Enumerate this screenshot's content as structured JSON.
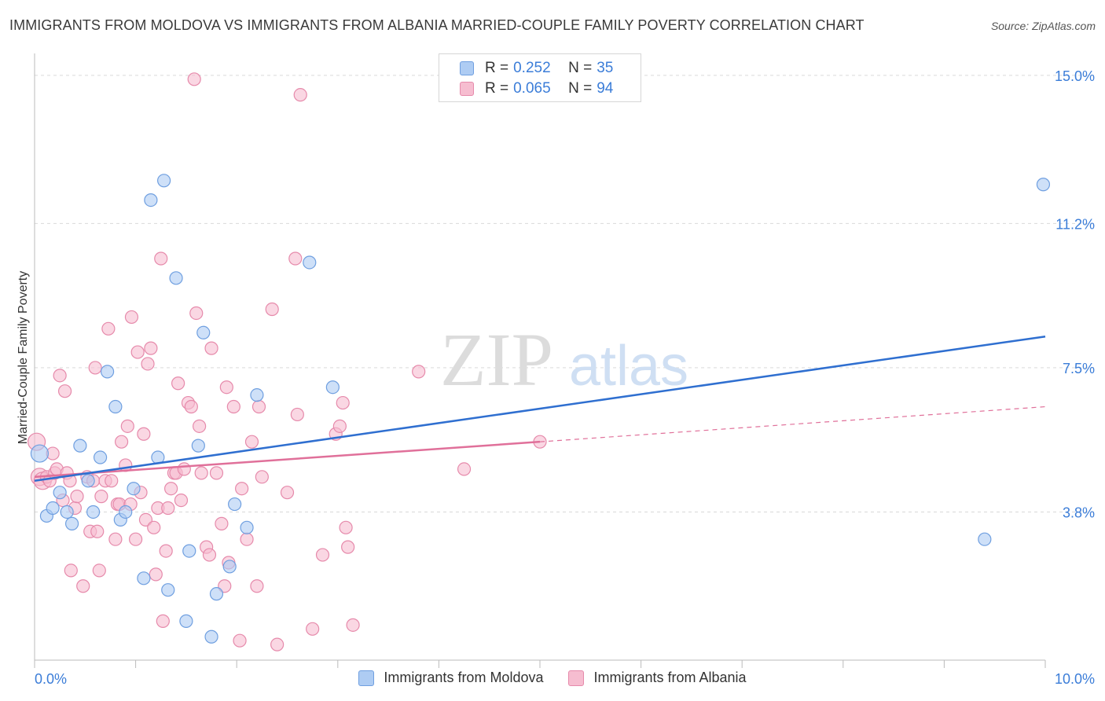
{
  "header": {
    "title": "IMMIGRANTS FROM MOLDOVA VS IMMIGRANTS FROM ALBANIA MARRIED-COUPLE FAMILY POVERTY CORRELATION CHART",
    "source": "Source: ZipAtlas.com"
  },
  "watermark": {
    "zip": "ZIP",
    "atlas": "atlas"
  },
  "legend": {
    "r_label": "R =",
    "n_label": "N =",
    "moldova": {
      "r": "0.252",
      "n": "35"
    },
    "albania": {
      "r": "0.065",
      "n": "94"
    }
  },
  "colors": {
    "moldova_fill": "#aeccf3",
    "moldova_stroke": "#6f9fe0",
    "moldova_line": "#2f6fd0",
    "albania_fill": "#f6bdd0",
    "albania_stroke": "#e68aab",
    "albania_line": "#e0709a",
    "tick_text": "#3b7dd8"
  },
  "chart_data": {
    "type": "scatter",
    "title": "IMMIGRANTS FROM MOLDOVA VS IMMIGRANTS FROM ALBANIA MARRIED-COUPLE FAMILY POVERTY CORRELATION CHART",
    "xlabel": "",
    "ylabel": "Married-Couple Family Poverty",
    "xlim": [
      0,
      10
    ],
    "ylim": [
      0,
      15.4
    ],
    "x_tick_labels": [
      "0.0%",
      "10.0%"
    ],
    "y_ticks": [
      3.8,
      7.5,
      11.2,
      15.0
    ],
    "y_tick_labels": [
      "3.8%",
      "7.5%",
      "11.2%",
      "15.0%"
    ],
    "grid": true,
    "legend_position": "top-center",
    "series": [
      {
        "name": "Immigrants from Moldova",
        "r": 0.252,
        "n": 35,
        "trend": {
          "x": [
            0,
            10
          ],
          "y": [
            4.6,
            8.3
          ]
        },
        "points": [
          [
            0.05,
            5.3
          ],
          [
            0.12,
            3.7
          ],
          [
            0.18,
            3.9
          ],
          [
            0.25,
            4.3
          ],
          [
            0.32,
            3.8
          ],
          [
            0.37,
            3.5
          ],
          [
            0.45,
            5.5
          ],
          [
            0.53,
            4.6
          ],
          [
            0.58,
            3.8
          ],
          [
            0.65,
            5.2
          ],
          [
            0.72,
            7.4
          ],
          [
            0.8,
            6.5
          ],
          [
            0.85,
            3.6
          ],
          [
            0.9,
            3.8
          ],
          [
            0.98,
            4.4
          ],
          [
            1.08,
            2.1
          ],
          [
            1.15,
            11.8
          ],
          [
            1.28,
            12.3
          ],
          [
            1.32,
            1.8
          ],
          [
            1.22,
            5.2
          ],
          [
            1.4,
            9.8
          ],
          [
            1.5,
            1.0
          ],
          [
            1.53,
            2.8
          ],
          [
            1.62,
            5.5
          ],
          [
            1.67,
            8.4
          ],
          [
            1.75,
            0.6
          ],
          [
            1.8,
            1.7
          ],
          [
            1.93,
            2.4
          ],
          [
            1.98,
            4.0
          ],
          [
            2.1,
            3.4
          ],
          [
            2.2,
            6.8
          ],
          [
            2.72,
            10.2
          ],
          [
            2.95,
            7.0
          ],
          [
            9.4,
            3.1
          ],
          [
            9.98,
            12.2
          ]
        ]
      },
      {
        "name": "Immigrants from Albania",
        "r": 0.065,
        "n": 94,
        "trend": {
          "x": [
            0,
            5
          ],
          "y": [
            4.7,
            5.6
          ]
        },
        "trend_dashed": {
          "x": [
            5,
            10
          ],
          "y": [
            5.6,
            6.5
          ]
        },
        "points": [
          [
            0.02,
            5.6
          ],
          [
            0.05,
            4.7
          ],
          [
            0.08,
            4.6
          ],
          [
            0.12,
            4.7
          ],
          [
            0.15,
            4.6
          ],
          [
            0.18,
            5.3
          ],
          [
            0.2,
            4.8
          ],
          [
            0.22,
            4.9
          ],
          [
            0.25,
            7.3
          ],
          [
            0.28,
            4.1
          ],
          [
            0.3,
            6.9
          ],
          [
            0.32,
            4.8
          ],
          [
            0.35,
            4.6
          ],
          [
            0.36,
            2.3
          ],
          [
            0.4,
            3.9
          ],
          [
            0.42,
            4.2
          ],
          [
            0.48,
            1.9
          ],
          [
            0.52,
            4.7
          ],
          [
            0.55,
            3.3
          ],
          [
            0.58,
            4.6
          ],
          [
            0.6,
            7.5
          ],
          [
            0.62,
            3.3
          ],
          [
            0.64,
            2.3
          ],
          [
            0.66,
            4.2
          ],
          [
            0.7,
            4.6
          ],
          [
            0.73,
            8.5
          ],
          [
            0.76,
            4.6
          ],
          [
            0.8,
            3.1
          ],
          [
            0.82,
            4.0
          ],
          [
            0.84,
            4.0
          ],
          [
            0.86,
            5.6
          ],
          [
            0.9,
            5.0
          ],
          [
            0.92,
            6.0
          ],
          [
            0.95,
            4.0
          ],
          [
            0.96,
            8.8
          ],
          [
            1.0,
            3.1
          ],
          [
            1.02,
            7.9
          ],
          [
            1.05,
            4.3
          ],
          [
            1.08,
            5.8
          ],
          [
            1.1,
            3.6
          ],
          [
            1.12,
            7.6
          ],
          [
            1.15,
            8.0
          ],
          [
            1.18,
            3.4
          ],
          [
            1.2,
            2.2
          ],
          [
            1.22,
            3.9
          ],
          [
            1.25,
            10.3
          ],
          [
            1.27,
            1.0
          ],
          [
            1.3,
            2.8
          ],
          [
            1.32,
            3.9
          ],
          [
            1.35,
            4.4
          ],
          [
            1.38,
            4.8
          ],
          [
            1.4,
            4.8
          ],
          [
            1.42,
            7.1
          ],
          [
            1.45,
            4.1
          ],
          [
            1.48,
            4.9
          ],
          [
            1.52,
            6.6
          ],
          [
            1.55,
            6.5
          ],
          [
            1.58,
            14.9
          ],
          [
            1.6,
            8.9
          ],
          [
            1.63,
            6.0
          ],
          [
            1.65,
            4.8
          ],
          [
            1.7,
            2.9
          ],
          [
            1.73,
            2.7
          ],
          [
            1.75,
            8.0
          ],
          [
            1.8,
            4.8
          ],
          [
            1.85,
            3.5
          ],
          [
            1.88,
            1.9
          ],
          [
            1.9,
            7.0
          ],
          [
            1.92,
            2.5
          ],
          [
            1.97,
            6.5
          ],
          [
            2.03,
            0.5
          ],
          [
            2.05,
            4.4
          ],
          [
            2.1,
            3.1
          ],
          [
            2.15,
            5.6
          ],
          [
            2.2,
            1.9
          ],
          [
            2.22,
            6.5
          ],
          [
            2.25,
            4.7
          ],
          [
            2.35,
            9.0
          ],
          [
            2.4,
            0.4
          ],
          [
            2.5,
            4.3
          ],
          [
            2.58,
            10.3
          ],
          [
            2.6,
            6.3
          ],
          [
            2.63,
            14.5
          ],
          [
            2.75,
            0.8
          ],
          [
            2.85,
            2.7
          ],
          [
            2.98,
            5.8
          ],
          [
            3.02,
            6.0
          ],
          [
            3.05,
            6.6
          ],
          [
            3.08,
            3.4
          ],
          [
            3.1,
            2.9
          ],
          [
            3.15,
            0.9
          ],
          [
            3.8,
            7.4
          ],
          [
            4.25,
            4.9
          ],
          [
            5.0,
            5.6
          ]
        ]
      }
    ]
  },
  "bottom_legend": {
    "moldova": "Immigrants from Moldova",
    "albania": "Immigrants from Albania"
  }
}
